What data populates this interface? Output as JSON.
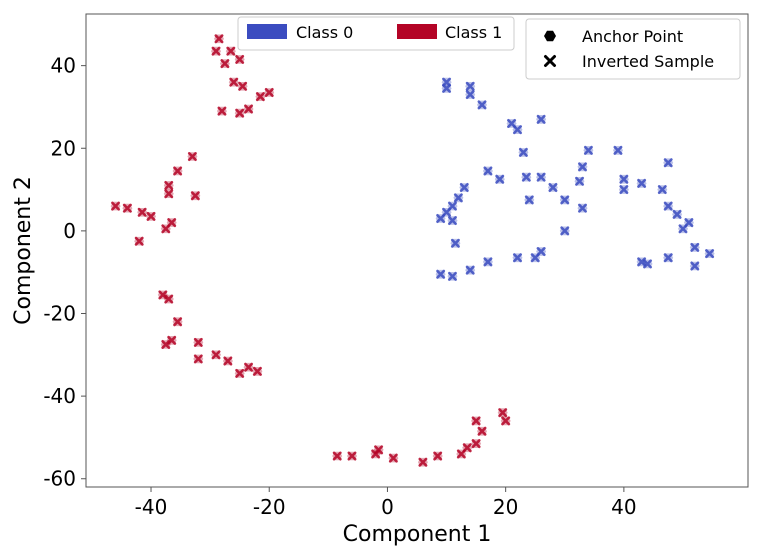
{
  "chart_data": {
    "type": "scatter",
    "xlabel": "Component 1",
    "ylabel": "Component 2",
    "xlim": [
      -51,
      61
    ],
    "ylim": [
      -62,
      52.5
    ],
    "xticks": [
      -40,
      -20,
      0,
      20,
      40
    ],
    "yticks": [
      -60,
      -40,
      -20,
      0,
      20,
      40
    ],
    "xtick_labels": [
      "-40",
      "-20",
      "0",
      "20",
      "40"
    ],
    "ytick_labels": [
      "-60",
      "-40",
      "-20",
      "0",
      "20",
      "40"
    ],
    "grid": false,
    "legends": {
      "classes": {
        "placement": "top-center",
        "entries": [
          {
            "label": "Class 0",
            "color": "#3b4cc0"
          },
          {
            "label": "Class 1",
            "color": "#b40426"
          }
        ]
      },
      "markers": {
        "placement": "top-right",
        "entries": [
          {
            "label": "Anchor Point",
            "marker": "hexagon"
          },
          {
            "label": "Inverted Sample",
            "marker": "x"
          }
        ]
      }
    },
    "series": [
      {
        "class": "Class 0",
        "color": "#3b4cc0",
        "points": [
          [
            10,
            36
          ],
          [
            14,
            35
          ],
          [
            10,
            34.5
          ],
          [
            14,
            33
          ],
          [
            16,
            30.5
          ],
          [
            21,
            26
          ],
          [
            22,
            24.5
          ],
          [
            26,
            27
          ],
          [
            34,
            19.5
          ],
          [
            39,
            19.5
          ],
          [
            23,
            19
          ],
          [
            33,
            15.5
          ],
          [
            17,
            14.5
          ],
          [
            47.5,
            16.5
          ],
          [
            19,
            12.5
          ],
          [
            23.5,
            13
          ],
          [
            26,
            13
          ],
          [
            28,
            10.5
          ],
          [
            32.5,
            12
          ],
          [
            40,
            12.5
          ],
          [
            40,
            10
          ],
          [
            43,
            11.5
          ],
          [
            46.5,
            10
          ],
          [
            13,
            10.5
          ],
          [
            12,
            8
          ],
          [
            11,
            6
          ],
          [
            10,
            4.5
          ],
          [
            9,
            3
          ],
          [
            11,
            2.5
          ],
          [
            24,
            7.5
          ],
          [
            30,
            7.5
          ],
          [
            33,
            5.5
          ],
          [
            47.5,
            6
          ],
          [
            49,
            4
          ],
          [
            51,
            2
          ],
          [
            50,
            0.5
          ],
          [
            30,
            0
          ],
          [
            11.5,
            -3
          ],
          [
            52,
            -4
          ],
          [
            54.5,
            -5.5
          ],
          [
            26,
            -5
          ],
          [
            22,
            -6.5
          ],
          [
            25,
            -6.5
          ],
          [
            47.5,
            -6.5
          ],
          [
            43,
            -7.5
          ],
          [
            44,
            -8
          ],
          [
            17,
            -7.5
          ],
          [
            52,
            -8.5
          ],
          [
            14,
            -9.5
          ],
          [
            9,
            -10.5
          ],
          [
            11,
            -11
          ]
        ]
      },
      {
        "class": "Class 1",
        "color": "#b40426",
        "points": [
          [
            -28.5,
            46.5
          ],
          [
            -29,
            43.5
          ],
          [
            -26.5,
            43.5
          ],
          [
            -25,
            41.5
          ],
          [
            -27.5,
            40.5
          ],
          [
            -26,
            36
          ],
          [
            -24.5,
            35
          ],
          [
            -20,
            33.5
          ],
          [
            -21.5,
            32.5
          ],
          [
            -23.5,
            29.5
          ],
          [
            -28,
            29
          ],
          [
            -25,
            28.5
          ],
          [
            -33,
            18
          ],
          [
            -35.5,
            14.5
          ],
          [
            -37,
            11
          ],
          [
            -37,
            9
          ],
          [
            -32.5,
            8.5
          ],
          [
            -46,
            6
          ],
          [
            -44,
            5.5
          ],
          [
            -41.5,
            4.5
          ],
          [
            -40,
            3.5
          ],
          [
            -36.5,
            2
          ],
          [
            -37.5,
            0.5
          ],
          [
            -42,
            -2.5
          ],
          [
            -38,
            -15.5
          ],
          [
            -37,
            -16.5
          ],
          [
            -35.5,
            -22
          ],
          [
            -32,
            -27
          ],
          [
            -36.5,
            -26.5
          ],
          [
            -37.5,
            -27.5
          ],
          [
            -29,
            -30
          ],
          [
            -27,
            -31.5
          ],
          [
            -32,
            -31
          ],
          [
            -23.5,
            -33
          ],
          [
            -22,
            -34
          ],
          [
            -25,
            -34.5
          ],
          [
            15,
            -46
          ],
          [
            19.5,
            -44
          ],
          [
            20,
            -46
          ],
          [
            16,
            -48.5
          ],
          [
            15,
            -51.5
          ],
          [
            13.5,
            -52.5
          ],
          [
            12.5,
            -54
          ],
          [
            8.5,
            -54.5
          ],
          [
            6,
            -56
          ],
          [
            -1.5,
            -53
          ],
          [
            -2,
            -54
          ],
          [
            1,
            -55
          ],
          [
            -6,
            -54.5
          ],
          [
            -8.5,
            -54.5
          ]
        ]
      }
    ]
  }
}
